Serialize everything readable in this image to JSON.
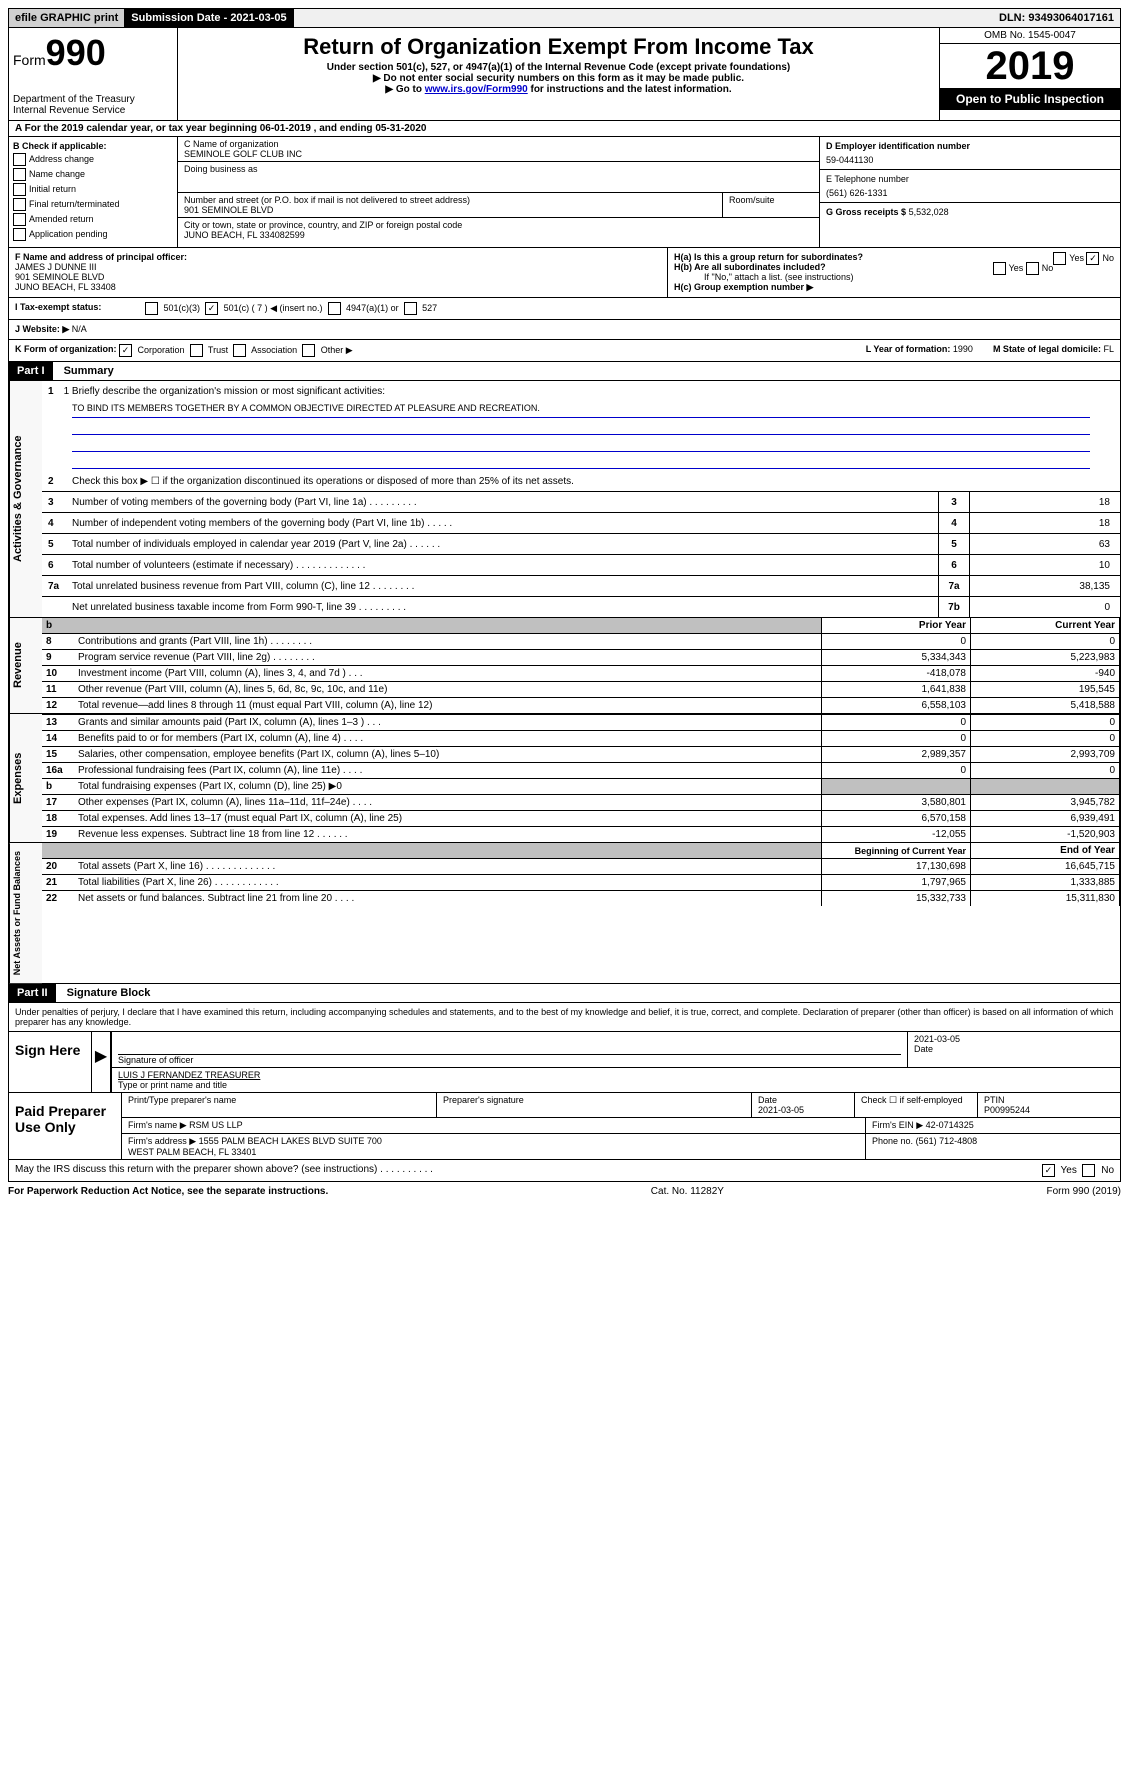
{
  "topbar": {
    "efile": "efile GRAPHIC print",
    "submission": "Submission Date - 2021-03-05",
    "dln": "DLN: 93493064017161"
  },
  "header": {
    "form_label": "Form",
    "form_num": "990",
    "dept": "Department of the Treasury\nInternal Revenue Service",
    "title": "Return of Organization Exempt From Income Tax",
    "subtitle": "Under section 501(c), 527, or 4947(a)(1) of the Internal Revenue Code (except private foundations)",
    "warn1": "▶ Do not enter social security numbers on this form as it may be made public.",
    "warn2_pre": "▶ Go to ",
    "warn2_link": "www.irs.gov/Form990",
    "warn2_post": " for instructions and the latest information.",
    "omb": "OMB No. 1545-0047",
    "year": "2019",
    "open": "Open to Public Inspection"
  },
  "line_a": "A For the 2019 calendar year, or tax year beginning 06-01-2019    , and ending 05-31-2020",
  "box_b": {
    "label": "B Check if applicable:",
    "opts": [
      "Address change",
      "Name change",
      "Initial return",
      "Final return/terminated",
      "Amended return",
      "Application pending"
    ]
  },
  "box_c": {
    "name_label": "C Name of organization",
    "name": "SEMINOLE GOLF CLUB INC",
    "dba_label": "Doing business as",
    "dba": "",
    "addr_label": "Number and street (or P.O. box if mail is not delivered to street address)",
    "room_label": "Room/suite",
    "addr": "901 SEMINOLE BLVD",
    "city_label": "City or town, state or province, country, and ZIP or foreign postal code",
    "city": "JUNO BEACH, FL  334082599"
  },
  "box_d": {
    "label": "D Employer identification number",
    "ein": "59-0441130",
    "phone_label": "E Telephone number",
    "phone": "(561) 626-1331",
    "gross_label": "G Gross receipts $",
    "gross": "5,532,028"
  },
  "box_f": {
    "label": "F  Name and address of principal officer:",
    "name": "JAMES J DUNNE III",
    "addr1": "901 SEMINOLE BLVD",
    "addr2": "JUNO BEACH, FL  33408"
  },
  "box_h": {
    "ha": "H(a)  Is this a group return for subordinates?",
    "hb": "H(b)  Are all subordinates included?",
    "hb_note": "If \"No,\" attach a list. (see instructions)",
    "hc": "H(c)  Group exemption number ▶"
  },
  "box_i": {
    "label": "I    Tax-exempt status:",
    "opt_501c3": "501(c)(3)",
    "opt_501c": "501(c) ( 7 ) ◀ (insert no.)",
    "opt_4947": "4947(a)(1) or",
    "opt_527": "527"
  },
  "box_j": {
    "label": "J    Website: ▶",
    "value": "N/A"
  },
  "box_k": {
    "label": "K Form of organization:",
    "corp": "Corporation",
    "trust": "Trust",
    "assoc": "Association",
    "other": "Other ▶",
    "l_label": "L Year of formation:",
    "l_val": "1990",
    "m_label": "M State of legal domicile:",
    "m_val": "FL"
  },
  "part1": {
    "header": "Part I",
    "title": "Summary",
    "l1_label": "1  Briefly describe the organization's mission or most significant activities:",
    "l1_text": "TO BIND ITS MEMBERS TOGETHER BY A COMMON OBJECTIVE DIRECTED AT PLEASURE AND RECREATION.",
    "l2": "Check this box ▶ ☐  if the organization discontinued its operations or disposed of more than 25% of its net assets."
  },
  "gov_lines": [
    {
      "n": "3",
      "t": "Number of voting members of the governing body (Part VI, line 1a)  .   .   .   .   .   .   .   .   .",
      "b": "3",
      "v": "18"
    },
    {
      "n": "4",
      "t": "Number of independent voting members of the governing body (Part VI, line 1b)   .   .   .   .   .",
      "b": "4",
      "v": "18"
    },
    {
      "n": "5",
      "t": "Total number of individuals employed in calendar year 2019 (Part V, line 2a)  .   .   .   .   .   .",
      "b": "5",
      "v": "63"
    },
    {
      "n": "6",
      "t": "Total number of volunteers (estimate if necessary)    .   .   .   .   .   .   .   .   .   .   .   .   .",
      "b": "6",
      "v": "10"
    },
    {
      "n": "7a",
      "t": "Total unrelated business revenue from Part VIII, column (C), line 12  .   .   .   .   .   .   .   .",
      "b": "7a",
      "v": "38,135"
    },
    {
      "n": "",
      "t": "Net unrelated business taxable income from Form 990-T, line 39   .   .   .   .   .   .   .   .   .",
      "b": "7b",
      "v": "0"
    }
  ],
  "section_labels": {
    "gov": "Activities & Governance",
    "rev": "Revenue",
    "exp": "Expenses",
    "net": "Net Assets or Fund Balances"
  },
  "col_headers": {
    "prior": "Prior Year",
    "current": "Current Year",
    "begin": "Beginning of Current Year",
    "end": "End of Year"
  },
  "revenue": [
    {
      "n": "8",
      "t": "Contributions and grants (Part VIII, line 1h)   .   .   .   .   .   .   .   .",
      "p": "0",
      "c": "0"
    },
    {
      "n": "9",
      "t": "Program service revenue (Part VIII, line 2g)   .   .   .   .   .   .   .   .",
      "p": "5,334,343",
      "c": "5,223,983"
    },
    {
      "n": "10",
      "t": "Investment income (Part VIII, column (A), lines 3, 4, and 7d )   .   .   .",
      "p": "-418,078",
      "c": "-940"
    },
    {
      "n": "11",
      "t": "Other revenue (Part VIII, column (A), lines 5, 6d, 8c, 9c, 10c, and 11e)",
      "p": "1,641,838",
      "c": "195,545"
    },
    {
      "n": "12",
      "t": "Total revenue—add lines 8 through 11 (must equal Part VIII, column (A), line 12)",
      "p": "6,558,103",
      "c": "5,418,588"
    }
  ],
  "expenses": [
    {
      "n": "13",
      "t": "Grants and similar amounts paid (Part IX, column (A), lines 1–3 )   .   .   .",
      "p": "0",
      "c": "0"
    },
    {
      "n": "14",
      "t": "Benefits paid to or for members (Part IX, column (A), line 4)   .   .   .   .",
      "p": "0",
      "c": "0"
    },
    {
      "n": "15",
      "t": "Salaries, other compensation, employee benefits (Part IX, column (A), lines 5–10)",
      "p": "2,989,357",
      "c": "2,993,709"
    },
    {
      "n": "16a",
      "t": "Professional fundraising fees (Part IX, column (A), line 11e)   .   .   .   .",
      "p": "0",
      "c": "0"
    },
    {
      "n": "b",
      "t": "Total fundraising expenses (Part IX, column (D), line 25) ▶0",
      "p": "",
      "c": "",
      "shaded": true
    },
    {
      "n": "17",
      "t": "Other expenses (Part IX, column (A), lines 11a–11d, 11f–24e)   .   .   .   .",
      "p": "3,580,801",
      "c": "3,945,782"
    },
    {
      "n": "18",
      "t": "Total expenses. Add lines 13–17 (must equal Part IX, column (A), line 25)",
      "p": "6,570,158",
      "c": "6,939,491"
    },
    {
      "n": "19",
      "t": "Revenue less expenses. Subtract line 18 from line 12   .   .   .   .   .   .",
      "p": "-12,055",
      "c": "-1,520,903"
    }
  ],
  "netassets": [
    {
      "n": "20",
      "t": "Total assets (Part X, line 16)   .   .   .   .   .   .   .   .   .   .   .   .   .",
      "p": "17,130,698",
      "c": "16,645,715"
    },
    {
      "n": "21",
      "t": "Total liabilities (Part X, line 26)   .   .   .   .   .   .   .   .   .   .   .   .",
      "p": "1,797,965",
      "c": "1,333,885"
    },
    {
      "n": "22",
      "t": "Net assets or fund balances. Subtract line 21 from line 20   .   .   .   .",
      "p": "15,332,733",
      "c": "15,311,830"
    }
  ],
  "part2": {
    "header": "Part II",
    "title": "Signature Block",
    "perjury": "Under penalties of perjury, I declare that I have examined this return, including accompanying schedules and statements, and to the best of my knowledge and belief, it is true, correct, and complete. Declaration of preparer (other than officer) is based on all information of which preparer has any knowledge."
  },
  "sign": {
    "here": "Sign Here",
    "sig_label": "Signature of officer",
    "date": "2021-03-05",
    "date_label": "Date",
    "name": "LUIS J FERNANDEZ  TREASURER",
    "name_label": "Type or print name and title"
  },
  "preparer": {
    "label": "Paid Preparer Use Only",
    "print_label": "Print/Type preparer's name",
    "sig_label": "Preparer's signature",
    "date_label": "Date",
    "date": "2021-03-05",
    "check_label": "Check ☐ if self-employed",
    "ptin_label": "PTIN",
    "ptin": "P00995244",
    "firm_name_label": "Firm's name      ▶",
    "firm_name": "RSM US LLP",
    "firm_ein_label": "Firm's EIN ▶",
    "firm_ein": "42-0714325",
    "firm_addr_label": "Firm's address ▶",
    "firm_addr": "1555 PALM BEACH LAKES BLVD SUITE 700\nWEST PALM BEACH, FL  33401",
    "phone_label": "Phone no.",
    "phone": "(561) 712-4808"
  },
  "discuss": "May the IRS discuss this return with the preparer shown above? (see instructions)   .   .   .   .   .   .   .   .   .   .",
  "footer": {
    "left": "For Paperwork Reduction Act Notice, see the separate instructions.",
    "mid": "Cat. No. 11282Y",
    "right": "Form 990 (2019)"
  }
}
